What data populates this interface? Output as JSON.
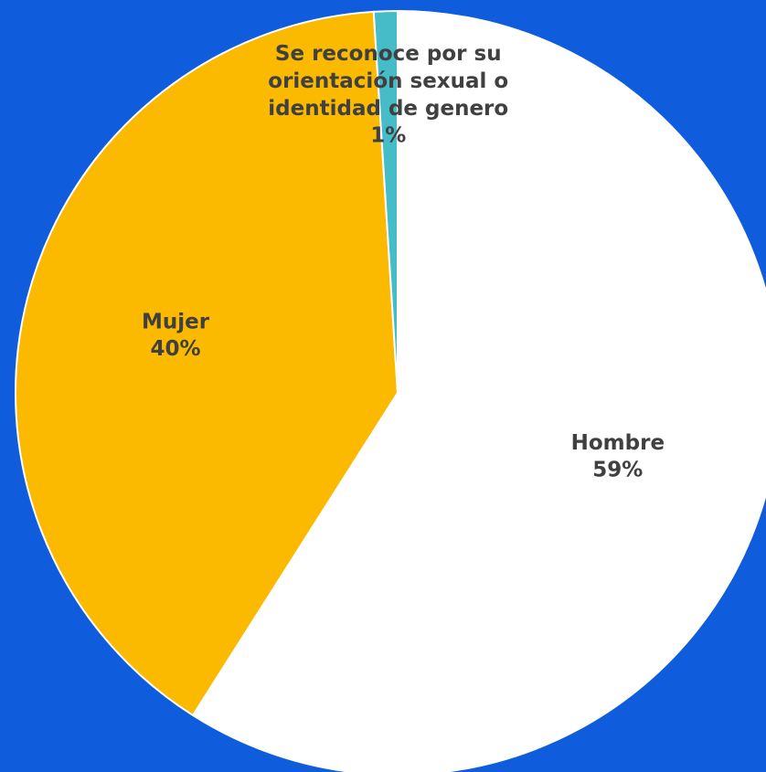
{
  "chart_data": {
    "type": "pie",
    "categories": [
      "Hombre",
      "Mujer",
      "Se reconoce por su orientación sexual o identidad de genero"
    ],
    "values": [
      59,
      40,
      1
    ],
    "value_labels": [
      "59%",
      "40%",
      "1%"
    ],
    "colors": [
      "#ffffff",
      "#fbb900",
      "#45bcc8"
    ],
    "background": "#0f5ddc"
  }
}
